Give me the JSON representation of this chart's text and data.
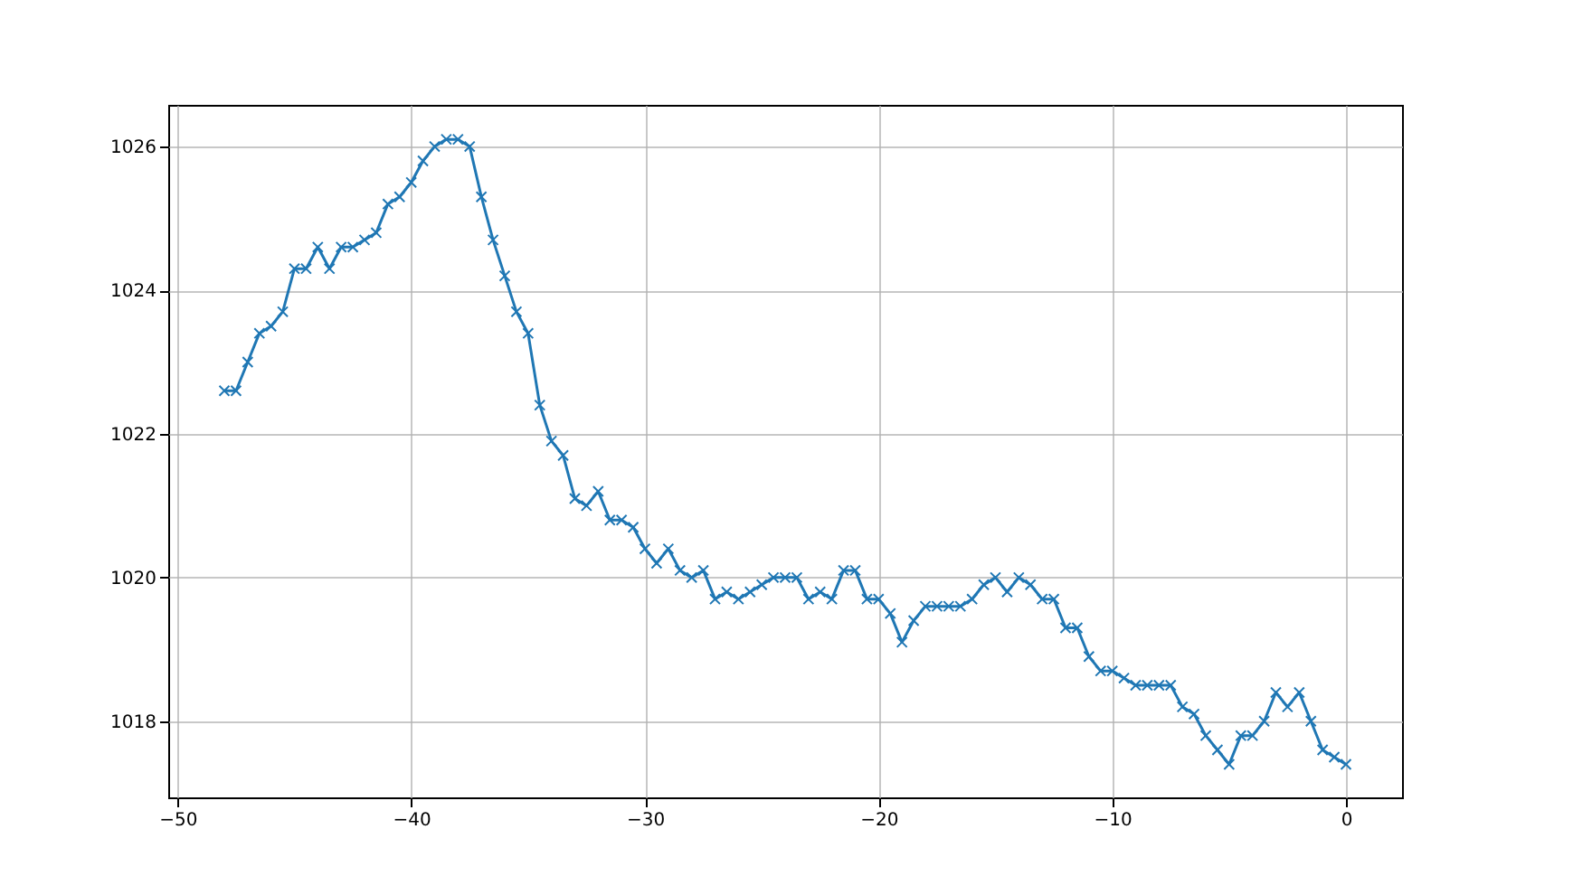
{
  "chart_data": {
    "type": "line",
    "marker": "cross",
    "grid": true,
    "x": [
      -48,
      -47.5,
      -47,
      -46.5,
      -46,
      -45.5,
      -45,
      -44.5,
      -44,
      -43.5,
      -43,
      -42.5,
      -42,
      -41.5,
      -41,
      -40.5,
      -40,
      -39.5,
      -39,
      -38.5,
      -38,
      -37.5,
      -37,
      -36.5,
      -36,
      -35.5,
      -35,
      -34.5,
      -34,
      -33.5,
      -33,
      -32.5,
      -32,
      -31.5,
      -31,
      -30.5,
      -30,
      -29.5,
      -29,
      -28.5,
      -28,
      -27.5,
      -27,
      -26.5,
      -26,
      -25.5,
      -25,
      -24.5,
      -24,
      -23.5,
      -23,
      -22.5,
      -22,
      -21.5,
      -21,
      -20.5,
      -20,
      -19.5,
      -19,
      -18.5,
      -18,
      -17.5,
      -17,
      -16.5,
      -16,
      -15.5,
      -15,
      -14.5,
      -14,
      -13.5,
      -13,
      -12.5,
      -12,
      -11.5,
      -11,
      -10.5,
      -10,
      -9.5,
      -9,
      -8.5,
      -8,
      -7.5,
      -7,
      -6.5,
      -6,
      -5.5,
      -5,
      -4.5,
      -4,
      -3.5,
      -3,
      -2.5,
      -2,
      -1.5,
      -1,
      -0.5,
      0
    ],
    "series": [
      {
        "color": "#1f77b4",
        "values": [
          1022.6,
          1022.6,
          1023.0,
          1023.4,
          1023.5,
          1023.7,
          1024.3,
          1024.3,
          1024.6,
          1024.3,
          1024.6,
          1024.6,
          1024.7,
          1024.8,
          1025.2,
          1025.3,
          1025.5,
          1025.8,
          1026.0,
          1026.1,
          1026.1,
          1026.0,
          1025.3,
          1024.7,
          1024.2,
          1023.7,
          1023.4,
          1022.4,
          1021.9,
          1021.7,
          1021.1,
          1021.0,
          1021.2,
          1020.8,
          1020.8,
          1020.7,
          1020.4,
          1020.2,
          1020.4,
          1020.1,
          1020.0,
          1020.1,
          1019.7,
          1019.8,
          1019.7,
          1019.8,
          1019.9,
          1020.0,
          1020.0,
          1020.0,
          1019.7,
          1019.8,
          1019.7,
          1020.1,
          1020.1,
          1019.7,
          1019.7,
          1019.5,
          1019.1,
          1019.4,
          1019.6,
          1019.6,
          1019.6,
          1019.6,
          1019.7,
          1019.9,
          1020.0,
          1019.8,
          1020.0,
          1019.9,
          1019.7,
          1019.7,
          1019.3,
          1019.3,
          1018.9,
          1018.7,
          1018.7,
          1018.6,
          1018.5,
          1018.5,
          1018.5,
          1018.5,
          1018.2,
          1018.1,
          1017.8,
          1017.6,
          1017.4,
          1017.8,
          1017.8,
          1018.0,
          1018.4,
          1018.2,
          1018.4,
          1018.0,
          1017.6,
          1017.5,
          1017.4
        ]
      }
    ],
    "xlim": [
      -50.4,
      2.4
    ],
    "xticks": [
      -50,
      -40,
      -30,
      -20,
      -10,
      0
    ],
    "ylim": [
      1016.94,
      1026.58
    ],
    "yticks": [
      1018,
      1020,
      1022,
      1024,
      1026
    ]
  }
}
